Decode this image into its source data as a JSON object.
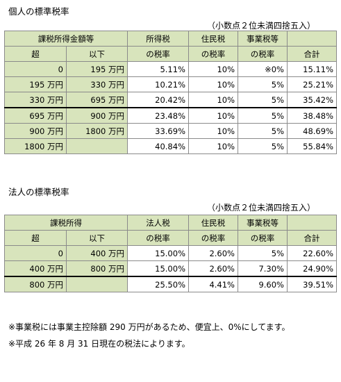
{
  "individual": {
    "title": "個人の標準税率",
    "note": "（小数点２位未満四捨五入）",
    "header": {
      "income": "課税所得金額等",
      "over": "超",
      "upto": "以下",
      "income_tax_1": "所得税",
      "income_tax_2": "の税率",
      "resident_tax_1": "住民税",
      "resident_tax_2": "の税率",
      "business_tax_1": "事業税等",
      "business_tax_2": "の税率",
      "total": "合計"
    },
    "rows": [
      {
        "over": "0",
        "upto": "195 万円",
        "income_tax": "5.11%",
        "resident_tax": "10%",
        "business_tax": "※0%",
        "total": "15.11%"
      },
      {
        "over": "195 万円",
        "upto": "330 万円",
        "income_tax": "10.21%",
        "resident_tax": "10%",
        "business_tax": "5%",
        "total": "25.21%"
      },
      {
        "over": "330 万円",
        "upto": "695 万円",
        "income_tax": "20.42%",
        "resident_tax": "10%",
        "business_tax": "5%",
        "total": "35.42%"
      },
      {
        "over": "695 万円",
        "upto": "900 万円",
        "income_tax": "23.48%",
        "resident_tax": "10%",
        "business_tax": "5%",
        "total": "38.48%"
      },
      {
        "over": "900 万円",
        "upto": "1800 万円",
        "income_tax": "33.69%",
        "resident_tax": "10%",
        "business_tax": "5%",
        "total": "48.69%"
      },
      {
        "over": "1800 万円",
        "upto": "",
        "income_tax": "40.84%",
        "resident_tax": "10%",
        "business_tax": "5%",
        "total": "55.84%"
      }
    ]
  },
  "corporate": {
    "title": "法人の標準税率",
    "note": "（小数点２位未満四捨五入）",
    "header": {
      "income": "課税所得",
      "over": "超",
      "upto": "以下",
      "corp_tax_1": "法人税",
      "corp_tax_2": "の税率",
      "resident_tax_1": "住民税",
      "resident_tax_2": "の税率",
      "business_tax_1": "事業税等",
      "business_tax_2": "の税率",
      "total": "合計"
    },
    "rows": [
      {
        "over": "0",
        "upto": "400 万円",
        "corp_tax": "15.00%",
        "resident_tax": "2.60%",
        "business_tax": "5%",
        "total": "22.60%"
      },
      {
        "over": "400 万円",
        "upto": "800 万円",
        "corp_tax": "15.00%",
        "resident_tax": "2.60%",
        "business_tax": "7.30%",
        "total": "24.90%"
      },
      {
        "over": "800 万円",
        "upto": "",
        "corp_tax": "25.50%",
        "resident_tax": "4.41%",
        "business_tax": "9.60%",
        "total": "39.51%"
      }
    ]
  },
  "footnotes": [
    "※事業税には事業主控除額 290 万円があるため、便宜上、0%にしてます。",
    "※平成 26 年 8 月 31 日現在の税法によります。"
  ]
}
